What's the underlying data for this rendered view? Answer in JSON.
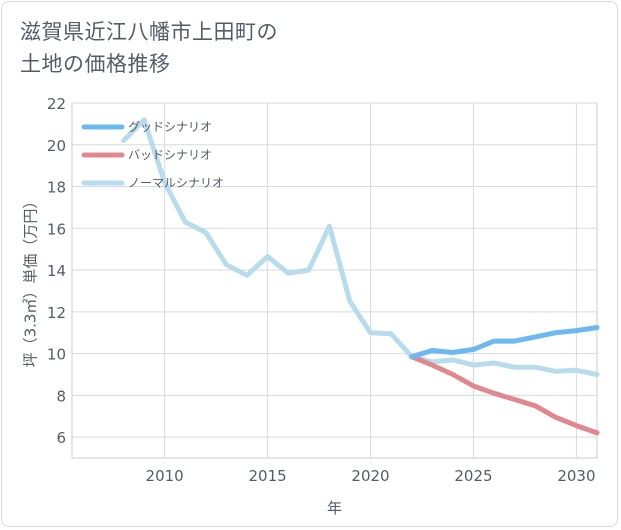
{
  "title_line1": "滋賀県近江八幡市上田町の",
  "title_line2": "土地の価格推移",
  "chart_data": {
    "type": "line",
    "title": "滋賀県近江八幡市上田町の土地の価格推移",
    "xlabel": "年",
    "ylabel": "坪（3.3㎡）単価（万円）",
    "xlim": [
      2005.5,
      2031
    ],
    "ylim": [
      5,
      22
    ],
    "xticks": [
      2010,
      2015,
      2020,
      2025,
      2030
    ],
    "yticks": [
      6,
      8,
      10,
      12,
      14,
      16,
      18,
      20,
      22
    ],
    "grid": true,
    "legend_position": "top-left",
    "series": [
      {
        "name": "グッドシナリオ",
        "color": "#6cb8f0",
        "x": [
          2022,
          2023,
          2024,
          2025,
          2026,
          2027,
          2028,
          2029,
          2030,
          2031
        ],
        "y": [
          9.85,
          10.15,
          10.05,
          10.2,
          10.6,
          10.6,
          10.8,
          11.0,
          11.1,
          11.25
        ]
      },
      {
        "name": "バッドシナリオ",
        "color": "#e08890",
        "x": [
          2022,
          2023,
          2024,
          2025,
          2026,
          2027,
          2028,
          2029,
          2030,
          2031
        ],
        "y": [
          9.85,
          9.45,
          9.0,
          8.45,
          8.1,
          7.8,
          7.5,
          6.95,
          6.55,
          6.2
        ]
      },
      {
        "name": "ノーマルシナリオ",
        "color": "#b9dced",
        "x": [
          2008,
          2009,
          2010,
          2011,
          2012,
          2013,
          2014,
          2015,
          2016,
          2017,
          2018,
          2019,
          2020,
          2021,
          2022,
          2023,
          2024,
          2025,
          2026,
          2027,
          2028,
          2029,
          2030,
          2031
        ],
        "y": [
          20.2,
          21.2,
          18.2,
          16.3,
          15.8,
          14.25,
          13.75,
          14.65,
          13.85,
          14.0,
          16.1,
          12.5,
          11.0,
          10.95,
          9.85,
          9.6,
          9.7,
          9.45,
          9.55,
          9.35,
          9.35,
          9.15,
          9.2,
          9.0
        ]
      }
    ]
  }
}
